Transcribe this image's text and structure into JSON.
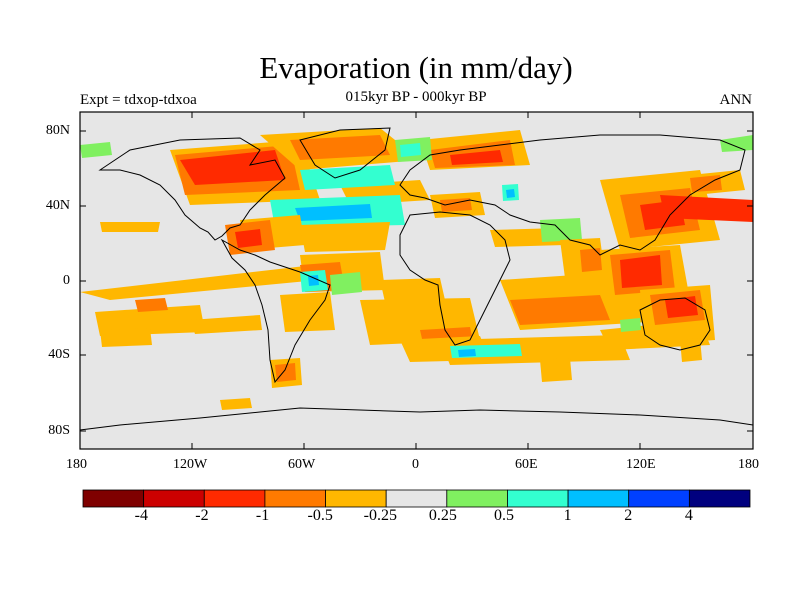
{
  "title": "Evaporation (in mm/day)",
  "subtitle": "015kyr BP - 000kyr BP",
  "left_label": "Expt = tdxop-tdxoa",
  "right_label": "ANN",
  "lat_ticks": [
    "80N",
    "40N",
    "0",
    "40S",
    "80S"
  ],
  "lon_ticks": [
    "180",
    "120W",
    "60W",
    "0",
    "60E",
    "120E",
    "180"
  ],
  "colorbar": {
    "colors": [
      "#7f0000",
      "#cc0000",
      "#ff2a00",
      "#ff7a00",
      "#ffb700",
      "#e6e6e6",
      "#80f060",
      "#33ffd0",
      "#00bfff",
      "#0040ff",
      "#00007f"
    ],
    "labels": [
      "-4",
      "-2",
      "-1",
      "-0.5",
      "-0.25",
      "0.25",
      "0.5",
      "1",
      "2",
      "4"
    ]
  },
  "map": {
    "background_color": "#e6e6e6",
    "palette": {
      "dred": "#cc0000",
      "red": "#ff2a00",
      "org": "#ff7a00",
      "yel": "#ffb700",
      "grn": "#80f060",
      "cyn": "#33ffd0",
      "blu": "#00bfff"
    }
  }
}
